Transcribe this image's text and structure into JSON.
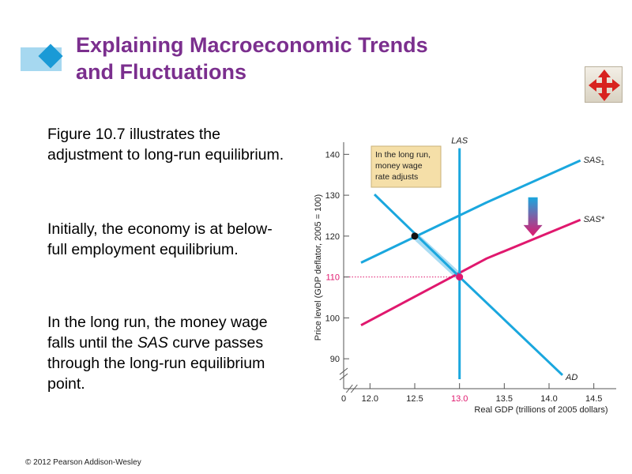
{
  "title": {
    "line1": "Explaining Macroeconomic Trends",
    "line2": "and Fluctuations"
  },
  "body": {
    "p1": "Figure 10.7 illustrates the adjustment to long-run equilibrium.",
    "p2": "Initially, the economy is at below-full employment equilibrium.",
    "p3_a": "In the long run, the money wage falls until the ",
    "p3_em": "SAS",
    "p3_b": " curve passes through the long-run equilibrium point."
  },
  "copyright": "© 2012 Pearson Addison-Wesley",
  "icons": {
    "decor": "diamond-icon",
    "nav": "four-arrows-move-icon"
  },
  "colors": {
    "title": "#7b2f8e",
    "curve_blue": "#1aa7de",
    "curve_magenta": "#e0186e",
    "callout_bg": "#f5dfa8"
  },
  "chart_data": {
    "type": "line",
    "xlabel": "Real GDP (trillions of 2005 dollars)",
    "ylabel": "Price level (GDP deflator, 2005 = 100)",
    "x_origin_label": "0",
    "x_ticks": [
      12.0,
      12.5,
      13.0,
      13.5,
      14.0,
      14.5
    ],
    "x_tick_labels": [
      "12.0",
      "12.5",
      "13.0",
      "13.5",
      "14.0",
      "14.5"
    ],
    "y_ticks": [
      90,
      100,
      110,
      120,
      130,
      140
    ],
    "y_tick_labels": [
      "90",
      "100",
      "110",
      "120",
      "130",
      "140"
    ],
    "xlim": [
      11.75,
      14.75
    ],
    "ylim": [
      85,
      142
    ],
    "highlight": {
      "x_label": "13.0",
      "y_label": "110",
      "x": 13.0,
      "y": 110
    },
    "series": [
      {
        "name": "SAS",
        "sub": "1",
        "points": [
          [
            11.9,
            113.5
          ],
          [
            13.3,
            128.2
          ],
          [
            14.35,
            138.5
          ]
        ]
      },
      {
        "name": "SAS*",
        "sub": "",
        "points": [
          [
            11.9,
            98.2
          ],
          [
            13.3,
            114.5
          ],
          [
            14.35,
            124
          ]
        ]
      },
      {
        "name": "AD",
        "sub": "",
        "points": [
          [
            12.05,
            130.2
          ],
          [
            13.0,
            110
          ],
          [
            14.15,
            86
          ]
        ]
      },
      {
        "name": "LAS",
        "sub": "",
        "points": [
          [
            13.0,
            85
          ],
          [
            13.0,
            141.5
          ]
        ]
      }
    ],
    "points": [
      {
        "x": 12.5,
        "y": 120,
        "color": "black"
      },
      {
        "x": 13.0,
        "y": 110,
        "color": "magenta"
      }
    ],
    "annotation": {
      "lines": [
        "In the long run,",
        "money wage",
        "rate adjusts"
      ]
    }
  }
}
